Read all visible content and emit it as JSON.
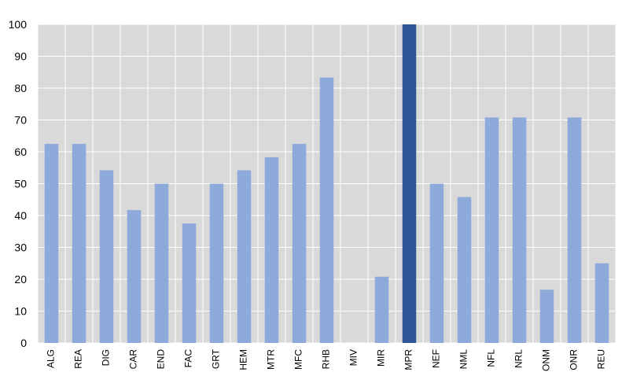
{
  "chart_data": {
    "type": "bar",
    "title": "",
    "xlabel": "",
    "ylabel": "",
    "ylim": [
      0,
      100
    ],
    "yticks": [
      0,
      10,
      20,
      30,
      40,
      50,
      60,
      70,
      80,
      90,
      100
    ],
    "grid": true,
    "legend": "none",
    "categories": [
      "ALG",
      "REA",
      "DIG",
      "CAR",
      "END",
      "FAC",
      "GRT",
      "HEM",
      "MTR",
      "MFC",
      "RHB",
      "MIV",
      "MIR",
      "MPR",
      "NEF",
      "NML",
      "NFL",
      "NRL",
      "ONM",
      "ONR",
      "REU"
    ],
    "values": [
      62.5,
      62.5,
      54.2,
      41.7,
      50,
      37.5,
      50,
      54.2,
      58.3,
      62.5,
      83.3,
      0,
      20.8,
      100,
      50,
      45.8,
      70.8,
      70.8,
      16.7,
      70.8,
      25
    ],
    "highlighted_category": "MPR"
  },
  "colors": {
    "plot_background": "#d9d9d9",
    "gridline": "#ffffff",
    "bar": "#8eaadb",
    "bar_highlight": "#2f5597",
    "axis_text": "#000000"
  }
}
